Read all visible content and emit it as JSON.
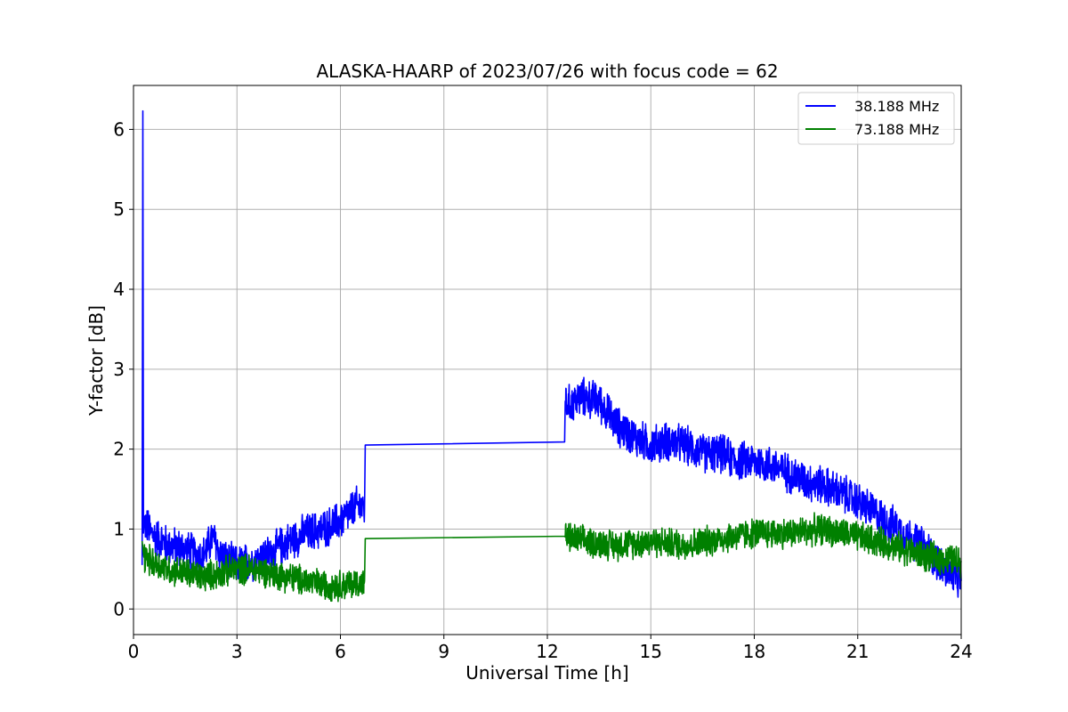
{
  "chart_data": {
    "type": "line",
    "title": "ALASKA-HAARP of 2023/07/26 with focus code = 62",
    "xlabel": "Universal Time [h]",
    "ylabel": "Y-factor [dB]",
    "xlim": [
      0,
      24
    ],
    "ylim": [
      -0.32,
      6.55
    ],
    "xticks": [
      0,
      3,
      6,
      9,
      12,
      15,
      18,
      21,
      24
    ],
    "xtick_labels": [
      "0",
      "3",
      "6",
      "9",
      "12",
      "15",
      "18",
      "21",
      "24"
    ],
    "yticks": [
      0,
      1,
      2,
      3,
      4,
      5,
      6
    ],
    "ytick_labels": [
      "0",
      "1",
      "2",
      "3",
      "4",
      "5",
      "6"
    ],
    "grid": true,
    "legend_position": "top-right",
    "series": [
      {
        "name": "38.188 MHz",
        "color": "#0000ff",
        "x": [
          0.25,
          0.27,
          0.29,
          0.31,
          0.5,
          1.0,
          1.5,
          2.0,
          2.3,
          2.5,
          2.7,
          3.0,
          3.5,
          4.0,
          4.5,
          5.0,
          5.5,
          6.0,
          6.5,
          6.7,
          6.72,
          12.5,
          12.52,
          12.6,
          13.0,
          13.5,
          14.0,
          14.5,
          15.0,
          15.5,
          16.0,
          16.5,
          17.0,
          17.5,
          18.0,
          18.5,
          19.0,
          19.5,
          20.0,
          20.5,
          21.0,
          21.5,
          22.0,
          22.5,
          23.0,
          23.5,
          24.0
        ],
        "y": [
          0.55,
          6.23,
          0.95,
          1.1,
          0.95,
          0.8,
          0.75,
          0.65,
          0.9,
          0.7,
          0.6,
          0.55,
          0.6,
          0.7,
          0.85,
          0.95,
          1.0,
          1.1,
          1.3,
          1.25,
          2.05,
          2.09,
          2.6,
          2.55,
          2.65,
          2.6,
          2.3,
          2.15,
          2.05,
          2.1,
          2.05,
          1.95,
          1.95,
          1.85,
          1.85,
          1.8,
          1.7,
          1.6,
          1.55,
          1.45,
          1.35,
          1.2,
          1.05,
          0.9,
          0.75,
          0.5,
          0.35
        ],
        "noise_amplitude": 0.28
      },
      {
        "name": "73.188 MHz",
        "color": "#008000",
        "x": [
          0.25,
          0.3,
          0.5,
          1.0,
          1.5,
          2.0,
          2.5,
          3.0,
          3.5,
          4.0,
          4.5,
          5.0,
          5.5,
          6.0,
          6.5,
          6.7,
          6.72,
          12.5,
          12.52,
          13.0,
          14.0,
          15.0,
          16.0,
          17.0,
          18.0,
          19.0,
          20.0,
          21.0,
          22.0,
          23.0,
          24.0
        ],
        "y": [
          0.85,
          0.65,
          0.6,
          0.5,
          0.45,
          0.4,
          0.45,
          0.5,
          0.5,
          0.45,
          0.4,
          0.35,
          0.3,
          0.3,
          0.32,
          0.35,
          0.88,
          0.91,
          0.9,
          0.85,
          0.8,
          0.85,
          0.8,
          0.88,
          0.95,
          0.95,
          1.0,
          0.9,
          0.8,
          0.65,
          0.6
        ],
        "noise_amplitude": 0.22
      }
    ]
  }
}
